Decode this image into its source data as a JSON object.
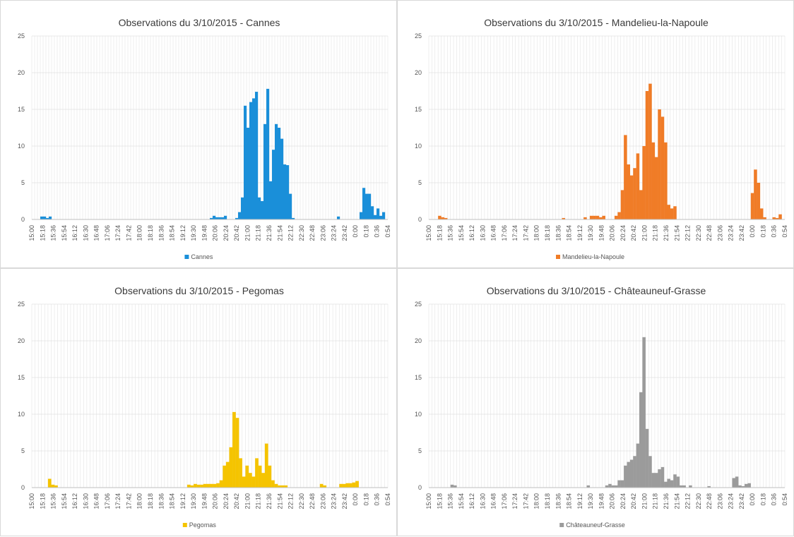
{
  "chart_data": [
    {
      "type": "bar",
      "title": "Observations du 3/10/2015 - Cannes",
      "ylim": [
        0,
        25
      ],
      "y_ticks": [
        0,
        5,
        10,
        15,
        20,
        25
      ],
      "x_tick_labels": [
        "15:00",
        "15:18",
        "15:36",
        "15:54",
        "16:12",
        "16:30",
        "16:48",
        "17:06",
        "17:24",
        "17:42",
        "18:00",
        "18:18",
        "18:36",
        "18:54",
        "19:12",
        "19:30",
        "19:48",
        "20:06",
        "20:24",
        "20:42",
        "21:00",
        "21:18",
        "21:36",
        "21:54",
        "22:12",
        "22:30",
        "22:48",
        "23:06",
        "23:24",
        "23:42",
        "0:00",
        "0:18",
        "0:36",
        "0:54"
      ],
      "grid": true,
      "legend": "bottom",
      "color": "#1a8fd9",
      "series": [
        {
          "name": "Cannes",
          "values": [
            0,
            0,
            0,
            0.4,
            0.4,
            0.2,
            0.4,
            0,
            0,
            0,
            0,
            0,
            0,
            0,
            0,
            0,
            0,
            0,
            0,
            0,
            0,
            0,
            0,
            0,
            0,
            0,
            0,
            0,
            0,
            0,
            0,
            0,
            0,
            0,
            0,
            0,
            0,
            0,
            0,
            0,
            0,
            0,
            0,
            0,
            0,
            0,
            0,
            0,
            0,
            0,
            0,
            0,
            0,
            0,
            0,
            0,
            0,
            0,
            0,
            0,
            0,
            0,
            0,
            0.2,
            0.5,
            0.3,
            0.3,
            0.3,
            0.5,
            0,
            0,
            0,
            0.2,
            1,
            3,
            15.5,
            12.5,
            16,
            16.5,
            17.4,
            3,
            2.5,
            13,
            17.8,
            5.2,
            9.5,
            13,
            12.5,
            11,
            7.5,
            7.4,
            3.5,
            0.2,
            0,
            0,
            0,
            0,
            0,
            0,
            0,
            0,
            0,
            0,
            0,
            0,
            0,
            0,
            0,
            0.4,
            0,
            0,
            0,
            0,
            0,
            0,
            0,
            1,
            4.3,
            3.5,
            3.5,
            1.8,
            0.6,
            1.5,
            0.5,
            1,
            0
          ]
        }
      ]
    },
    {
      "type": "bar",
      "title": "Observations du 3/10/2015 - Mandelieu-la-Napoule",
      "ylim": [
        0,
        25
      ],
      "y_ticks": [
        0,
        5,
        10,
        15,
        20,
        25
      ],
      "x_tick_labels": [
        "15:00",
        "15:18",
        "15:36",
        "15:54",
        "16:12",
        "16:30",
        "16:48",
        "17:06",
        "17:24",
        "17:42",
        "18:00",
        "18:18",
        "18:36",
        "18:54",
        "19:12",
        "19:30",
        "19:48",
        "20:06",
        "20:24",
        "20:42",
        "21:00",
        "21:18",
        "21:36",
        "21:54",
        "22:12",
        "22:30",
        "22:48",
        "23:06",
        "23:24",
        "23:42",
        "0:00",
        "0:18",
        "0:36",
        "0:54"
      ],
      "grid": true,
      "legend": "bottom",
      "color": "#f07c27",
      "series": [
        {
          "name": "Mandelieu-la-Napoule",
          "values": [
            0,
            0,
            0,
            0.5,
            0.3,
            0.2,
            0,
            0,
            0,
            0,
            0,
            0,
            0,
            0,
            0,
            0,
            0,
            0,
            0,
            0,
            0,
            0,
            0,
            0,
            0,
            0,
            0,
            0,
            0,
            0,
            0,
            0,
            0,
            0,
            0,
            0,
            0,
            0,
            0,
            0,
            0,
            0,
            0,
            0.2,
            0,
            0,
            0,
            0,
            0,
            0,
            0.3,
            0,
            0.5,
            0.5,
            0.5,
            0.3,
            0.5,
            0,
            0,
            0,
            0.5,
            1,
            4,
            11.5,
            7.5,
            6,
            7,
            9,
            4,
            10,
            17.5,
            18.5,
            10.5,
            8.5,
            15,
            14,
            10.5,
            2,
            1.5,
            1.8,
            0,
            0,
            0,
            0,
            0,
            0,
            0,
            0,
            0,
            0,
            0,
            0,
            0,
            0,
            0,
            0,
            0,
            0,
            0,
            0,
            0,
            0,
            0,
            0,
            3.6,
            6.8,
            5,
            1.5,
            0.3,
            0,
            0,
            0.3,
            0.2,
            0.7,
            0
          ]
        }
      ]
    },
    {
      "type": "bar",
      "title": "Observations du 3/10/2015 - Pegomas",
      "ylim": [
        0,
        25
      ],
      "y_ticks": [
        0,
        5,
        10,
        15,
        20,
        25
      ],
      "x_tick_labels": [
        "15:00",
        "15:18",
        "15:36",
        "15:54",
        "16:12",
        "16:30",
        "16:48",
        "17:06",
        "17:24",
        "17:42",
        "18:00",
        "18:18",
        "18:36",
        "18:54",
        "19:12",
        "19:30",
        "19:48",
        "20:06",
        "20:24",
        "20:42",
        "21:00",
        "21:18",
        "21:36",
        "21:54",
        "22:12",
        "22:30",
        "22:48",
        "23:06",
        "23:24",
        "23:42",
        "0:00",
        "0:18",
        "0:36",
        "0:54"
      ],
      "grid": true,
      "legend": "bottom",
      "color": "#f5c400",
      "series": [
        {
          "name": "Pegomas",
          "values": [
            0,
            0,
            0,
            0,
            0,
            1.2,
            0.4,
            0.3,
            0,
            0,
            0,
            0,
            0,
            0,
            0,
            0,
            0,
            0,
            0,
            0,
            0,
            0,
            0,
            0,
            0,
            0,
            0,
            0,
            0,
            0,
            0,
            0,
            0,
            0,
            0,
            0,
            0,
            0,
            0,
            0,
            0,
            0,
            0,
            0,
            0,
            0,
            0,
            0,
            0.4,
            0.3,
            0.5,
            0.4,
            0.4,
            0.5,
            0.5,
            0.5,
            0.5,
            0.6,
            1,
            3,
            3.5,
            5.5,
            10.3,
            9.5,
            4,
            1.5,
            3,
            2,
            1.5,
            4,
            3,
            2,
            6,
            3,
            1,
            0.5,
            0.3,
            0.3,
            0.3,
            0,
            0,
            0,
            0,
            0,
            0,
            0,
            0,
            0,
            0,
            0.5,
            0.3,
            0,
            0,
            0,
            0,
            0.5,
            0.5,
            0.6,
            0.6,
            0.7,
            0.9,
            0,
            0,
            0,
            0,
            0,
            0,
            0,
            0,
            0
          ]
        }
      ]
    },
    {
      "type": "bar",
      "title": "Observations du 3/10/2015 - Châteauneuf-Grasse",
      "ylim": [
        0,
        25
      ],
      "y_ticks": [
        0,
        5,
        10,
        15,
        20,
        25
      ],
      "x_tick_labels": [
        "15:00",
        "15:18",
        "15:36",
        "15:54",
        "16:12",
        "16:30",
        "16:48",
        "17:06",
        "17:24",
        "17:42",
        "18:00",
        "18:18",
        "18:36",
        "18:54",
        "19:12",
        "19:30",
        "19:48",
        "20:06",
        "20:24",
        "20:42",
        "21:00",
        "21:18",
        "21:36",
        "21:54",
        "22:12",
        "22:30",
        "22:48",
        "23:06",
        "23:24",
        "23:42",
        "0:00",
        "0:18",
        "0:36",
        "0:54"
      ],
      "grid": true,
      "legend": "bottom",
      "color": "#9b9b9b",
      "series": [
        {
          "name": "Châteauneuf-Grasse",
          "values": [
            0,
            0,
            0,
            0,
            0,
            0,
            0,
            0.4,
            0.3,
            0,
            0,
            0,
            0,
            0,
            0,
            0,
            0,
            0,
            0,
            0,
            0,
            0,
            0,
            0,
            0,
            0,
            0,
            0,
            0,
            0,
            0,
            0,
            0,
            0,
            0,
            0,
            0,
            0,
            0,
            0,
            0,
            0,
            0,
            0,
            0,
            0,
            0,
            0,
            0,
            0,
            0,
            0.3,
            0,
            0,
            0,
            0,
            0,
            0.3,
            0.5,
            0.3,
            0.3,
            1,
            1,
            3,
            3.5,
            3.8,
            4.3,
            6,
            13,
            20.5,
            8,
            4.3,
            2,
            2,
            2.5,
            2.8,
            0.8,
            1.2,
            1,
            1.8,
            1.5,
            0.3,
            0.3,
            0,
            0.3,
            0,
            0,
            0,
            0,
            0,
            0.2,
            0,
            0,
            0,
            0,
            0,
            0,
            0,
            1.3,
            1.5,
            0.3,
            0.2,
            0.5,
            0.6,
            0,
            0,
            0,
            0,
            0,
            0,
            0,
            0,
            0,
            0,
            0
          ]
        }
      ]
    }
  ]
}
